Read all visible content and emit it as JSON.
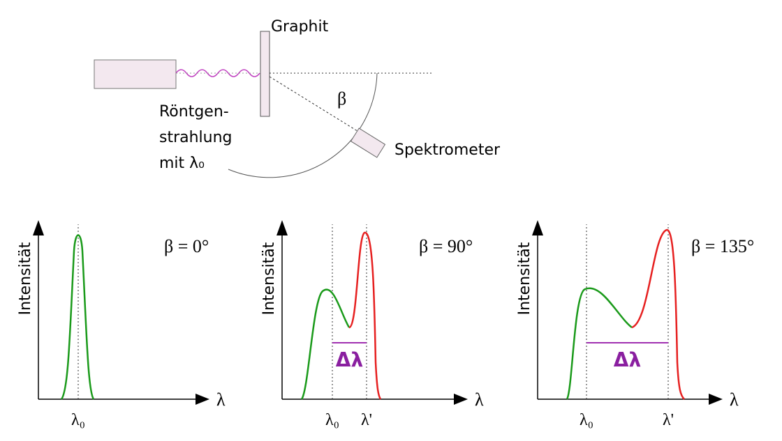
{
  "setup": {
    "target_label": "Graphit",
    "source_label": [
      "Röntgen-",
      "strahlung",
      "mit λ₀"
    ],
    "angle_label": "β",
    "detector_label": "Spektrometer"
  },
  "panels": [
    {
      "y_axis_label": "Intensität",
      "x_axis_label": "λ",
      "angle_label": "β = 0°",
      "ticks": [
        "λ₀"
      ]
    },
    {
      "y_axis_label": "Intensität",
      "x_axis_label": "λ",
      "angle_label": "β = 90°",
      "ticks": [
        "λ₀",
        "λ'"
      ],
      "shift_label": "Δλ"
    },
    {
      "y_axis_label": "Intensität",
      "x_axis_label": "λ",
      "angle_label": "β = 135°",
      "ticks": [
        "λ₀",
        "λ'"
      ],
      "shift_label": "Δλ"
    }
  ]
}
